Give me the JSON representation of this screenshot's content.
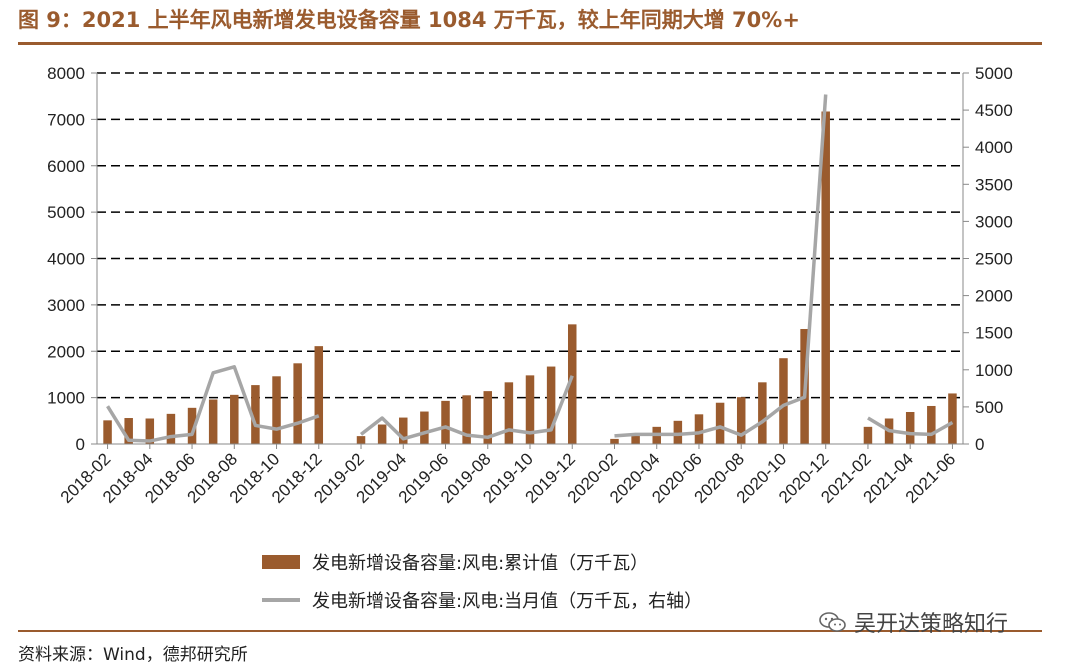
{
  "figure": {
    "title": "图 9：2021 上半年风电新增发电设备容量 1084 万千瓦，较上年同期大增 70%+",
    "source": "资料来源：Wind，德邦研究所",
    "watermark": "吴开达策略知行",
    "watermark_icon": "wechat-icon"
  },
  "chart_data": {
    "type": "bar",
    "categories": [
      "2018-02",
      "2018-03",
      "2018-04",
      "2018-05",
      "2018-06",
      "2018-07",
      "2018-08",
      "2018-09",
      "2018-10",
      "2018-11",
      "2018-12",
      "2019-01",
      "2019-02",
      "2019-03",
      "2019-04",
      "2019-05",
      "2019-06",
      "2019-07",
      "2019-08",
      "2019-09",
      "2019-10",
      "2019-11",
      "2019-12",
      "2020-01",
      "2020-02",
      "2020-03",
      "2020-04",
      "2020-05",
      "2020-06",
      "2020-07",
      "2020-08",
      "2020-09",
      "2020-10",
      "2020-11",
      "2020-12",
      "2021-01",
      "2021-02",
      "2021-03",
      "2021-04",
      "2021-05",
      "2021-06"
    ],
    "x_tick_labels": [
      "2018-02",
      "2018-04",
      "2018-06",
      "2018-08",
      "2018-10",
      "2018-12",
      "2019-02",
      "2019-04",
      "2019-06",
      "2019-08",
      "2019-10",
      "2019-12",
      "2020-02",
      "2020-04",
      "2020-06",
      "2020-08",
      "2020-10",
      "2020-12",
      "2021-02",
      "2021-04",
      "2021-06"
    ],
    "series": [
      {
        "name": "发电新增设备容量:风电:累计值（万千瓦）",
        "type": "bar",
        "axis": "left",
        "color": "#9a5b2e",
        "values": [
          510,
          560,
          550,
          650,
          780,
          960,
          1060,
          1270,
          1460,
          1740,
          2110,
          null,
          170,
          420,
          570,
          700,
          930,
          1050,
          1140,
          1330,
          1480,
          1670,
          2580,
          null,
          110,
          210,
          370,
          500,
          640,
          890,
          1010,
          1330,
          1850,
          2480,
          7170,
          null,
          370,
          550,
          690,
          820,
          1090
        ]
      },
      {
        "name": "发电新增设备容量:风电:当月值（万千瓦，右轴）",
        "type": "line",
        "axis": "right",
        "color": "#a6a6a6",
        "values": [
          510,
          50,
          40,
          100,
          130,
          960,
          1040,
          250,
          200,
          280,
          380,
          null,
          130,
          350,
          70,
          150,
          230,
          120,
          90,
          190,
          150,
          190,
          920,
          null,
          110,
          130,
          130,
          130,
          150,
          230,
          120,
          300,
          520,
          630,
          4710,
          null,
          350,
          180,
          140,
          130,
          290
        ]
      }
    ],
    "left_axis": {
      "ylim": [
        0,
        8000
      ],
      "ticks": [
        0,
        1000,
        2000,
        3000,
        4000,
        5000,
        6000,
        7000,
        8000
      ]
    },
    "right_axis": {
      "ylim": [
        0,
        5000
      ],
      "ticks": [
        0,
        500,
        1000,
        1500,
        2000,
        2500,
        3000,
        3500,
        4000,
        4500,
        5000
      ]
    },
    "grid": "horizontal-dashed",
    "legend_position": "bottom-center"
  }
}
